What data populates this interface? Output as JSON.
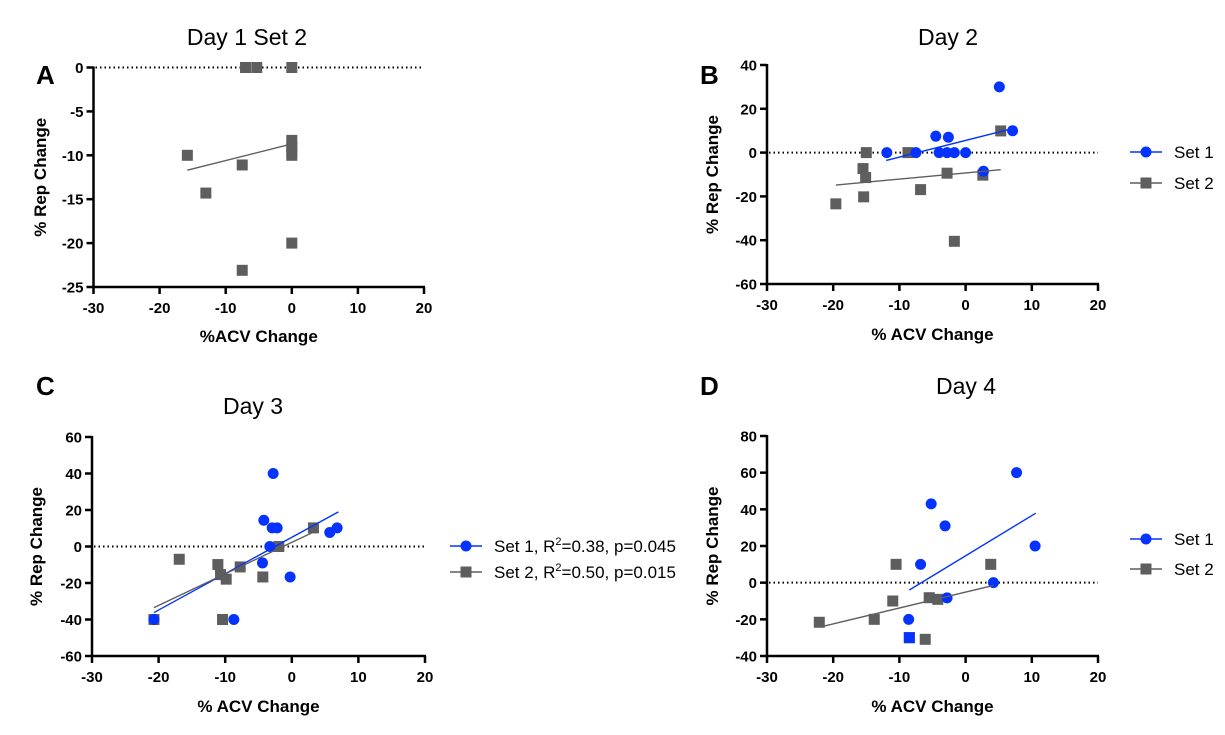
{
  "colors": {
    "set1": "#0433ff",
    "set2": "#5e5e5e"
  },
  "chart_data": [
    {
      "panel": "A",
      "type": "scatter",
      "title": "Day 1 Set 2",
      "xlabel": "%ACV Change",
      "ylabel": "% Rep Change",
      "xlim": [
        -30,
        20
      ],
      "ylim": [
        -25,
        0
      ],
      "xticks": [
        -30,
        -20,
        -10,
        0,
        10,
        20
      ],
      "yticks": [
        0,
        -5,
        -10,
        -15,
        -20,
        -25
      ],
      "zero_line": true,
      "legend": null,
      "series": [
        {
          "name": "Set 2",
          "marker": "square",
          "color_key": "set2",
          "points": [
            [
              -7,
              0
            ],
            [
              -5.3,
              0
            ],
            [
              0,
              0
            ],
            [
              -15.8,
              -10
            ],
            [
              -7.5,
              -11.1
            ],
            [
              -13,
              -14.3
            ],
            [
              -7.5,
              -23.1
            ],
            [
              0,
              -20
            ],
            [
              0,
              -8.3
            ],
            [
              0,
              -9
            ],
            [
              0,
              -9.6
            ],
            [
              0,
              -10
            ]
          ],
          "fit": [
            [
              -15.8,
              -11.7
            ],
            [
              0,
              -8.7
            ]
          ]
        }
      ]
    },
    {
      "panel": "B",
      "type": "scatter",
      "title": "Day 2",
      "xlabel": "% ACV Change",
      "ylabel": "% Rep Change",
      "xlim": [
        -30,
        20
      ],
      "ylim": [
        -60,
        40
      ],
      "xticks": [
        -30,
        -20,
        -10,
        0,
        10,
        20
      ],
      "yticks": [
        40,
        20,
        0,
        -20,
        -40,
        -60
      ],
      "zero_line": true,
      "legend": {
        "placement": "right",
        "entries": [
          "Set 1",
          "Set 2"
        ]
      },
      "series": [
        {
          "name": "Set 1",
          "marker": "circle",
          "color_key": "set1",
          "points": [
            [
              -11.9,
              0
            ],
            [
              -7.5,
              0
            ],
            [
              -4.5,
              7.5
            ],
            [
              -2.6,
              7
            ],
            [
              -4,
              0
            ],
            [
              -2.8,
              0
            ],
            [
              -1.7,
              0
            ],
            [
              0,
              0
            ],
            [
              2.7,
              -8.5
            ],
            [
              5.1,
              30
            ],
            [
              7.1,
              10
            ]
          ],
          "fit": [
            [
              -12,
              -3.6
            ],
            [
              7.1,
              11
            ]
          ]
        },
        {
          "name": "Set 2",
          "marker": "square",
          "color_key": "set2",
          "points": [
            [
              -15,
              0
            ],
            [
              -8.7,
              0
            ],
            [
              -15.5,
              -7.3
            ],
            [
              -15.1,
              -11.4
            ],
            [
              -15.4,
              -20.2
            ],
            [
              -19.6,
              -23.4
            ],
            [
              -6.8,
              -16.9
            ],
            [
              -2.8,
              -9.4
            ],
            [
              2.6,
              -10.3
            ],
            [
              5.3,
              9.9
            ],
            [
              -1.7,
              -40.5
            ]
          ],
          "fit": [
            [
              -19.6,
              -14.8
            ],
            [
              5.3,
              -7.8
            ]
          ]
        }
      ]
    },
    {
      "panel": "C",
      "type": "scatter",
      "title": "Day 3",
      "xlabel": "% ACV Change",
      "ylabel": "% Rep Change",
      "xlim": [
        -30,
        20
      ],
      "ylim": [
        -60,
        60
      ],
      "xticks": [
        -30,
        -20,
        -10,
        0,
        10,
        20
      ],
      "yticks": [
        60,
        40,
        20,
        0,
        -20,
        -40,
        -60
      ],
      "zero_line": true,
      "legend": {
        "placement": "right",
        "entries": [
          "Set 1, R²=0.38, p=0.045",
          "Set 2, R²=0.50, p=0.015"
        ]
      },
      "series": [
        {
          "name": "Set 1",
          "legend_prefix": "Set 1, R",
          "legend_sup": "2",
          "legend_suffix": "=0.38, p=0.045",
          "r_squared": 0.38,
          "p_value": 0.045,
          "marker": "circle",
          "color_key": "set1",
          "points": [
            [
              -8.7,
              -40
            ],
            [
              -2.8,
              40
            ],
            [
              -4.2,
              14.4
            ],
            [
              -2.95,
              10.2
            ],
            [
              -2.2,
              10.2
            ],
            [
              -3.3,
              0
            ],
            [
              -4.4,
              -9
            ],
            [
              -0.25,
              -16.7
            ],
            [
              5.7,
              7.7
            ],
            [
              6.8,
              10.2
            ],
            [
              -20.7,
              -40
            ]
          ],
          "fit": [
            [
              -20.7,
              -36.2
            ],
            [
              7,
              19
            ]
          ]
        },
        {
          "name": "Set 2",
          "legend_prefix": "Set 2, R",
          "legend_sup": "2",
          "legend_suffix": "=0.50, p=0.015",
          "r_squared": 0.5,
          "p_value": 0.015,
          "marker": "square",
          "color_key": "set2",
          "points": [
            [
              -20.7,
              -40
            ],
            [
              -16.9,
              -7
            ],
            [
              -11.1,
              -9.9
            ],
            [
              -10.7,
              -15.4
            ],
            [
              -9.85,
              -17.9
            ],
            [
              -7.75,
              -11.2
            ],
            [
              -4.35,
              -16.7
            ],
            [
              -1.95,
              0
            ],
            [
              3.25,
              10.2
            ],
            [
              -10.4,
              -40
            ]
          ],
          "fit": [
            [
              -20.7,
              -33.5
            ],
            [
              3.6,
              8.5
            ]
          ]
        }
      ]
    },
    {
      "panel": "D",
      "type": "scatter",
      "title": "Day 4",
      "xlabel": "% ACV Change",
      "ylabel": "% Rep Change",
      "xlim": [
        -30,
        20
      ],
      "ylim": [
        -40,
        80
      ],
      "xticks": [
        -30,
        -20,
        -10,
        0,
        10,
        20
      ],
      "yticks": [
        80,
        60,
        40,
        20,
        0,
        -20,
        -40
      ],
      "zero_line": true,
      "legend": {
        "placement": "right",
        "entries": [
          "Set 1",
          "Set 2"
        ]
      },
      "series": [
        {
          "name": "Set 1",
          "marker": "circle",
          "color_key": "set1",
          "points": [
            [
              7.7,
              60
            ],
            [
              -5.2,
              43
            ],
            [
              -3.1,
              31
            ],
            [
              -6.8,
              10
            ],
            [
              4.2,
              0
            ],
            [
              -2.8,
              -8.3
            ],
            [
              -8.6,
              -20
            ],
            [
              10.5,
              20
            ]
          ],
          "fit": [
            [
              -8.5,
              -4
            ],
            [
              10.6,
              37.9
            ]
          ]
        },
        {
          "name": "Set 2",
          "marker": "square",
          "color_key": "set2",
          "points": [
            [
              -22.1,
              -21.6
            ],
            [
              -13.8,
              -20
            ],
            [
              -11,
              -10
            ],
            [
              -10.5,
              10
            ],
            [
              -5.5,
              -8.2
            ],
            [
              -4.2,
              -9.1
            ],
            [
              -6.1,
              -30.9
            ],
            [
              3.8,
              10
            ],
            [
              -8.5,
              -30
            ]
          ],
          "fit": [
            [
              -22,
              -24.2
            ],
            [
              4.2,
              -1.5
            ]
          ]
        }
      ],
      "extra_set1_points": [
        [
          -8.5,
          -30
        ]
      ]
    }
  ]
}
